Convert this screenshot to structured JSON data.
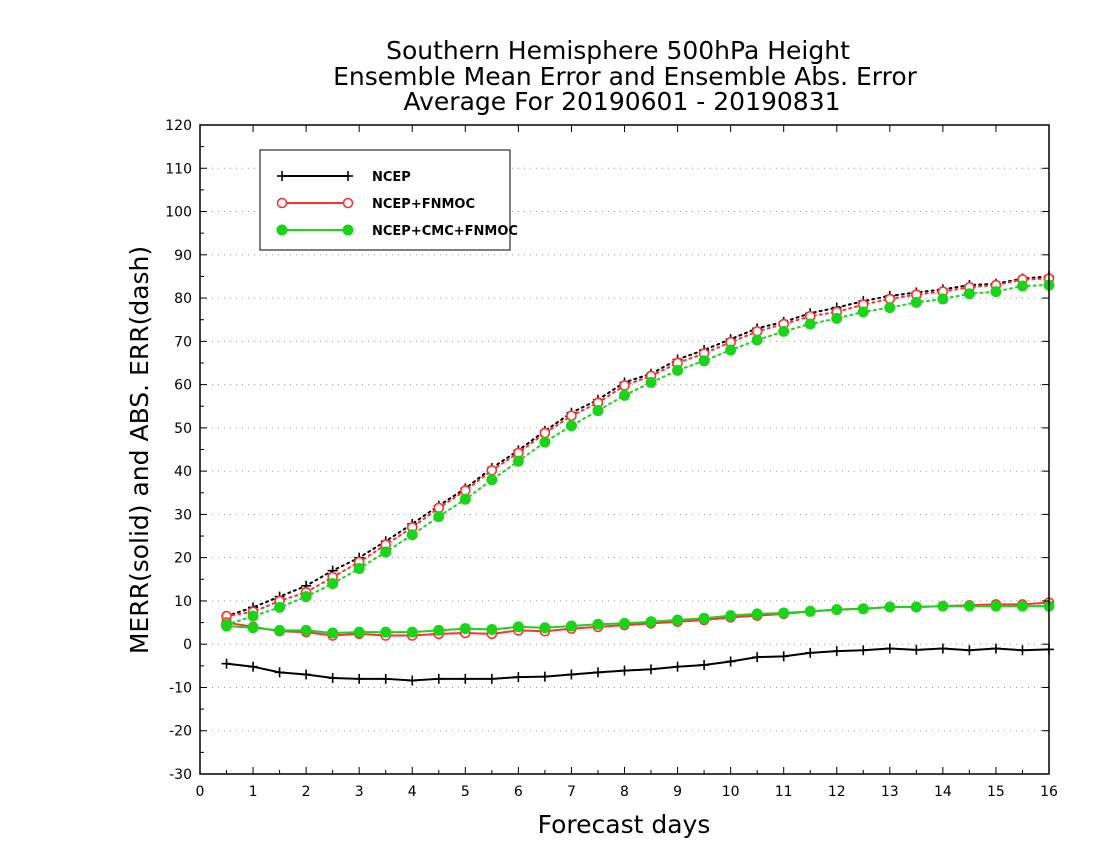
{
  "chart_data": {
    "type": "line",
    "title_lines": [
      "Southern Hemisphere 500hPa Height",
      "Ensemble Mean Error and Ensemble Abs. Error",
      "Average For 20190601 - 20190831"
    ],
    "xlabel": "Forecast days",
    "ylabel": "MERR(solid) and ABS. ERR(dash)",
    "xlim": [
      0,
      16
    ],
    "ylim": [
      -30,
      120
    ],
    "xticks": [
      0,
      1,
      2,
      3,
      4,
      5,
      6,
      7,
      8,
      9,
      10,
      11,
      12,
      13,
      14,
      15,
      16
    ],
    "yticks": [
      -30,
      -20,
      -10,
      0,
      10,
      20,
      30,
      40,
      50,
      60,
      70,
      80,
      90,
      100,
      110,
      120
    ],
    "grid": "horizontal dotted",
    "legend_position": "top-left",
    "x": [
      0.5,
      1,
      1.5,
      2,
      2.5,
      3,
      3.5,
      4,
      4.5,
      5,
      5.5,
      6,
      6.5,
      7,
      7.5,
      8,
      8.5,
      9,
      9.5,
      10,
      10.5,
      11,
      11.5,
      12,
      12.5,
      13,
      13.5,
      14,
      14.5,
      15,
      15.5,
      16
    ],
    "series": [
      {
        "name": "NCEP",
        "color": "#000000",
        "marker": "plus",
        "merr": [
          -4.5,
          -5.2,
          -6.5,
          -7.0,
          -7.8,
          -8.0,
          -8.0,
          -8.4,
          -8.0,
          -8.0,
          -8.0,
          -7.6,
          -7.5,
          -7.0,
          -6.5,
          -6.1,
          -5.8,
          -5.2,
          -4.8,
          -4.0,
          -3.0,
          -2.8,
          -2.0,
          -1.6,
          -1.4,
          -1.0,
          -1.3,
          -1.0,
          -1.4,
          -1.0,
          -1.4,
          -1.2
        ],
        "abs_err": [
          6.5,
          8.5,
          11.0,
          13.5,
          17.0,
          20.0,
          23.8,
          27.8,
          32.0,
          36.0,
          40.7,
          44.8,
          49.3,
          53.5,
          56.5,
          60.5,
          62.5,
          65.8,
          68.0,
          70.5,
          73.0,
          74.5,
          76.5,
          77.8,
          79.3,
          80.5,
          81.3,
          82.0,
          83.0,
          83.3,
          84.5,
          85.0
        ]
      },
      {
        "name": "NCEP+FNMOC",
        "color": "#ff3030",
        "marker": "circle",
        "merr": [
          5.0,
          4.0,
          3.0,
          2.8,
          2.0,
          2.4,
          2.0,
          2.0,
          2.4,
          2.6,
          2.4,
          3.2,
          3.0,
          3.6,
          4.0,
          4.4,
          4.8,
          5.2,
          5.6,
          6.2,
          6.6,
          7.0,
          7.6,
          8.0,
          8.2,
          8.6,
          8.6,
          8.8,
          9.0,
          9.2,
          9.2,
          9.6
        ],
        "abs_err": [
          6.5,
          7.5,
          10.0,
          12.0,
          15.5,
          19.0,
          23.0,
          27.0,
          31.5,
          35.5,
          40.2,
          44.2,
          48.8,
          52.8,
          55.8,
          59.8,
          62.0,
          65.0,
          67.2,
          69.8,
          72.3,
          74.0,
          75.8,
          76.8,
          78.5,
          79.8,
          80.8,
          81.5,
          82.5,
          83.0,
          84.3,
          84.5
        ]
      },
      {
        "name": "NCEP+CMC+FNMOC",
        "color": "#19d419",
        "marker": "filled-circle",
        "merr": [
          4.2,
          3.8,
          3.2,
          3.2,
          2.6,
          2.8,
          2.8,
          2.8,
          3.2,
          3.6,
          3.4,
          4.0,
          3.8,
          4.2,
          4.6,
          4.8,
          5.2,
          5.6,
          6.0,
          6.6,
          7.0,
          7.2,
          7.6,
          8.0,
          8.2,
          8.6,
          8.6,
          8.8,
          8.8,
          8.8,
          8.8,
          8.8
        ],
        "abs_err": [
          4.5,
          6.5,
          8.5,
          11.0,
          14.0,
          17.5,
          21.3,
          25.3,
          29.5,
          33.5,
          38.0,
          42.3,
          46.7,
          50.5,
          54.0,
          57.5,
          60.5,
          63.3,
          65.5,
          68.0,
          70.3,
          72.3,
          74.0,
          75.3,
          76.8,
          77.8,
          79.0,
          79.8,
          81.0,
          81.5,
          82.8,
          83.0
        ]
      }
    ]
  }
}
